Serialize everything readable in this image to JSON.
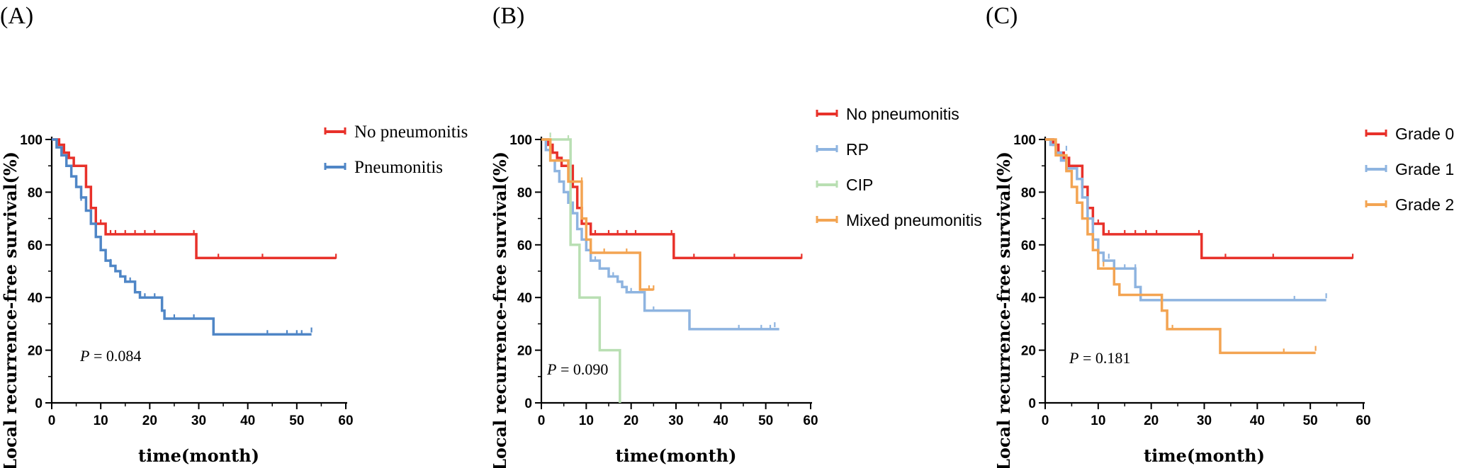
{
  "chart_data": [
    {
      "type": "line",
      "subtype": "kaplan-meier",
      "panel_label": "(A)",
      "xlabel": "time(month)",
      "ylabel": "Local recurrence-free survival(%)",
      "xlim": [
        0,
        60
      ],
      "ylim": [
        0,
        100
      ],
      "xticks": [
        "0",
        "10",
        "20",
        "30",
        "40",
        "50",
        "60"
      ],
      "yticks": [
        "0",
        "20",
        "40",
        "60",
        "80",
        "100"
      ],
      "legend_position": "top-right",
      "annotation": {
        "italic": "P",
        "text": " = 0.084"
      },
      "series": [
        {
          "name": "No pneumonitis",
          "color": "#e8312a",
          "steps": [
            [
              0,
              100
            ],
            [
              1.5,
              98
            ],
            [
              2.5,
              95
            ],
            [
              3.5,
              93
            ],
            [
              4.5,
              90
            ],
            [
              7,
              82
            ],
            [
              8,
              74
            ],
            [
              9,
              68
            ],
            [
              11,
              64
            ],
            [
              29.5,
              64
            ],
            [
              29.5,
              55
            ],
            [
              58,
              55
            ]
          ],
          "censors": [
            [
              10,
              68
            ],
            [
              12,
              64
            ],
            [
              13,
              64
            ],
            [
              15,
              64
            ],
            [
              17,
              64
            ],
            [
              19,
              64
            ],
            [
              21,
              64
            ],
            [
              29,
              64
            ],
            [
              34,
              55
            ],
            [
              43,
              55
            ],
            [
              58,
              55
            ]
          ]
        },
        {
          "name": "Pneumonitis",
          "color": "#4f86c6",
          "steps": [
            [
              0,
              100
            ],
            [
              1,
              97
            ],
            [
              2,
              94
            ],
            [
              3,
              90
            ],
            [
              4,
              86
            ],
            [
              5,
              82
            ],
            [
              6,
              78
            ],
            [
              7,
              73
            ],
            [
              8,
              68
            ],
            [
              9,
              63
            ],
            [
              10,
              58
            ],
            [
              11,
              54
            ],
            [
              12,
              52
            ],
            [
              13,
              50
            ],
            [
              14,
              48
            ],
            [
              15,
              46
            ],
            [
              17,
              42
            ],
            [
              18,
              40
            ],
            [
              22,
              40
            ],
            [
              22.5,
              35
            ],
            [
              23,
              32
            ],
            [
              33,
              32
            ],
            [
              33,
              26
            ],
            [
              53,
              26
            ]
          ],
          "censors": [
            [
              6,
              77
            ],
            [
              9,
              65
            ],
            [
              12,
              53
            ],
            [
              14,
              48
            ],
            [
              16,
              46
            ],
            [
              19,
              40
            ],
            [
              21,
              40
            ],
            [
              25,
              32
            ],
            [
              29,
              32
            ],
            [
              44,
              26
            ],
            [
              48,
              26
            ],
            [
              50,
              26
            ],
            [
              51,
              26
            ],
            [
              53,
              27
            ]
          ]
        }
      ]
    },
    {
      "type": "line",
      "subtype": "kaplan-meier",
      "panel_label": "(B)",
      "xlabel": "time(month)",
      "ylabel": "Local recurrence-free survival(%)",
      "xlim": [
        0,
        60
      ],
      "ylim": [
        0,
        100
      ],
      "xticks": [
        "0",
        "10",
        "20",
        "30",
        "40",
        "50",
        "60"
      ],
      "yticks": [
        "0",
        "20",
        "40",
        "60",
        "80",
        "100"
      ],
      "legend_position": "top-right",
      "annotation": {
        "italic": "P",
        "text": " = 0.090"
      },
      "series": [
        {
          "name": "No pneumonitis",
          "color": "#e8312a",
          "steps": [
            [
              0,
              100
            ],
            [
              1.5,
              98
            ],
            [
              2.5,
              95
            ],
            [
              3.5,
              93
            ],
            [
              4.5,
              90
            ],
            [
              7,
              82
            ],
            [
              8,
              74
            ],
            [
              9,
              68
            ],
            [
              11,
              64
            ],
            [
              29.5,
              64
            ],
            [
              29.5,
              55
            ],
            [
              58,
              55
            ]
          ],
          "censors": [
            [
              10,
              68
            ],
            [
              12,
              64
            ],
            [
              15,
              64
            ],
            [
              17,
              64
            ],
            [
              19,
              64
            ],
            [
              21,
              64
            ],
            [
              29,
              64
            ],
            [
              34,
              55
            ],
            [
              43,
              55
            ],
            [
              58,
              55
            ]
          ]
        },
        {
          "name": "RP",
          "color": "#8eb4e0",
          "steps": [
            [
              0,
              100
            ],
            [
              1,
              96
            ],
            [
              2,
              92
            ],
            [
              3,
              88
            ],
            [
              4,
              84
            ],
            [
              5,
              80
            ],
            [
              6,
              76
            ],
            [
              7,
              72
            ],
            [
              8,
              66
            ],
            [
              9,
              62
            ],
            [
              10,
              58
            ],
            [
              11,
              54
            ],
            [
              13,
              51
            ],
            [
              15,
              48
            ],
            [
              17,
              46
            ],
            [
              18,
              44
            ],
            [
              19,
              42
            ],
            [
              22,
              42
            ],
            [
              23,
              35
            ],
            [
              33,
              35
            ],
            [
              33,
              28
            ],
            [
              53,
              28
            ]
          ],
          "censors": [
            [
              8,
              66
            ],
            [
              12,
              54
            ],
            [
              16,
              48
            ],
            [
              20,
              42
            ],
            [
              25,
              35
            ],
            [
              44,
              28
            ],
            [
              49,
              28
            ],
            [
              51,
              28
            ],
            [
              52,
              29
            ]
          ]
        },
        {
          "name": "CIP",
          "color": "#b9dfb3",
          "steps": [
            [
              0,
              100
            ],
            [
              6.5,
              100
            ],
            [
              6.5,
              60
            ],
            [
              8.5,
              60
            ],
            [
              8.5,
              40
            ],
            [
              13,
              40
            ],
            [
              13,
              20
            ],
            [
              17.5,
              20
            ],
            [
              17.5,
              0
            ]
          ],
          "censors": [
            [
              2,
              101
            ],
            [
              6,
              100
            ]
          ]
        },
        {
          "name": "Mixed pneumonitis",
          "color": "#f3a452",
          "steps": [
            [
              0,
              100
            ],
            [
              2,
              92
            ],
            [
              6,
              92
            ],
            [
              6,
              84
            ],
            [
              9,
              84
            ],
            [
              9,
              70
            ],
            [
              10,
              62
            ],
            [
              11,
              57
            ],
            [
              22,
              57
            ],
            [
              22,
              43
            ],
            [
              25,
              43
            ]
          ],
          "censors": [
            [
              2,
              92
            ],
            [
              9,
              84
            ],
            [
              14,
              57
            ],
            [
              19,
              57
            ],
            [
              24,
              43
            ],
            [
              25,
              43
            ]
          ]
        }
      ]
    },
    {
      "type": "line",
      "subtype": "kaplan-meier",
      "panel_label": "(C)",
      "xlabel": "time(month)",
      "ylabel": "Local recurrence-free survival(%)",
      "xlim": [
        0,
        60
      ],
      "ylim": [
        0,
        100
      ],
      "xticks": [
        "0",
        "10",
        "20",
        "30",
        "40",
        "50",
        "60"
      ],
      "yticks": [
        "0",
        "20",
        "40",
        "60",
        "80",
        "100"
      ],
      "legend_position": "top-right",
      "annotation": {
        "italic": "P",
        "text": " = 0.181"
      },
      "series": [
        {
          "name": "Grade 0",
          "color": "#e8312a",
          "steps": [
            [
              0,
              100
            ],
            [
              1.5,
              98
            ],
            [
              2.5,
              95
            ],
            [
              3.5,
              93
            ],
            [
              4.5,
              90
            ],
            [
              7,
              82
            ],
            [
              8,
              74
            ],
            [
              9,
              68
            ],
            [
              11,
              64
            ],
            [
              29.5,
              64
            ],
            [
              29.5,
              55
            ],
            [
              58,
              55
            ]
          ],
          "censors": [
            [
              10,
              68
            ],
            [
              12,
              64
            ],
            [
              15,
              64
            ],
            [
              17,
              64
            ],
            [
              19,
              64
            ],
            [
              21,
              64
            ],
            [
              29,
              64
            ],
            [
              34,
              55
            ],
            [
              43,
              55
            ],
            [
              58,
              55
            ]
          ]
        },
        {
          "name": "Grade 1",
          "color": "#8eb4e0",
          "steps": [
            [
              0,
              100
            ],
            [
              1,
              98
            ],
            [
              2,
              95
            ],
            [
              3,
              92
            ],
            [
              4,
              89
            ],
            [
              6,
              85
            ],
            [
              7,
              78
            ],
            [
              8,
              70
            ],
            [
              9,
              62
            ],
            [
              10,
              57
            ],
            [
              11,
              54
            ],
            [
              13,
              51
            ],
            [
              17,
              51
            ],
            [
              17,
              44
            ],
            [
              18,
              39
            ],
            [
              53,
              39
            ]
          ],
          "censors": [
            [
              4,
              96
            ],
            [
              12,
              55
            ],
            [
              15,
              51
            ],
            [
              17,
              51
            ],
            [
              47,
              39
            ],
            [
              53,
              40
            ]
          ]
        },
        {
          "name": "Grade 2",
          "color": "#f3a452",
          "steps": [
            [
              0,
              100
            ],
            [
              2,
              94
            ],
            [
              4,
              88
            ],
            [
              5,
              82
            ],
            [
              6,
              76
            ],
            [
              7,
              70
            ],
            [
              8,
              64
            ],
            [
              9,
              58
            ],
            [
              10,
              51
            ],
            [
              13,
              51
            ],
            [
              13,
              45
            ],
            [
              14,
              41
            ],
            [
              21,
              41
            ],
            [
              22,
              35
            ],
            [
              23,
              28
            ],
            [
              33,
              28
            ],
            [
              33,
              19
            ],
            [
              51,
              19
            ]
          ],
          "censors": [
            [
              8,
              66
            ],
            [
              11,
              52
            ],
            [
              22,
              37
            ],
            [
              24,
              28
            ],
            [
              45,
              19
            ],
            [
              51,
              20
            ]
          ]
        }
      ]
    }
  ]
}
